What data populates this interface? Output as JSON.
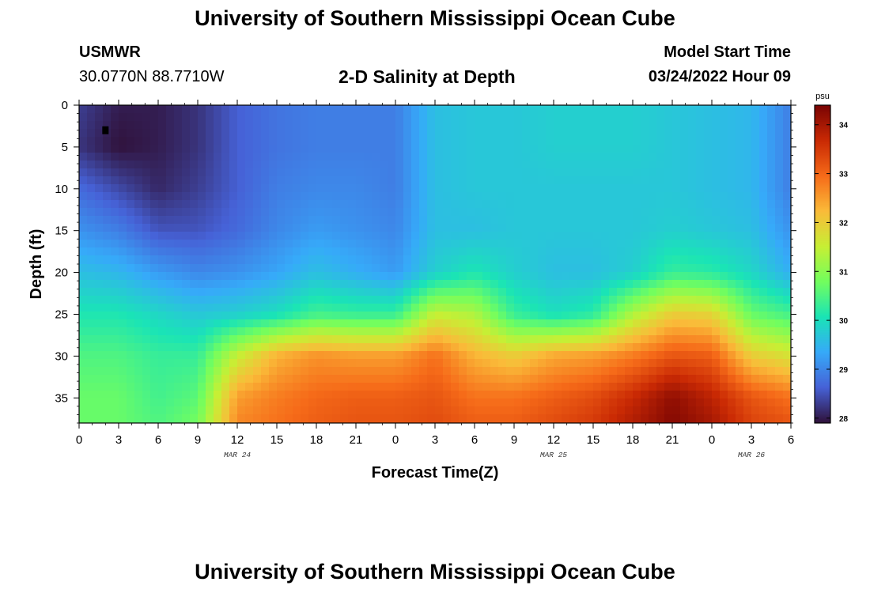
{
  "header": {
    "title": "University of Southern Mississippi Ocean Cube",
    "station": "USMWR",
    "coordinates": "30.0770N  88.7710W",
    "subtitle": "2-D Salinity at Depth",
    "start_label": "Model Start Time",
    "start_value": "03/24/2022 Hour 09"
  },
  "footer": {
    "title": "University of Southern Mississippi Ocean Cube"
  },
  "chart_data": {
    "type": "heatmap",
    "title": "2-D Salinity at Depth",
    "xlabel": "Forecast Time(Z)",
    "ylabel": "Depth (ft)",
    "x_tick_labels": [
      "0",
      "3",
      "6",
      "9",
      "12",
      "15",
      "18",
      "21",
      "0",
      "3",
      "6",
      "9",
      "12",
      "15",
      "18",
      "21",
      "0",
      "3",
      "6"
    ],
    "x_hours_range": [
      0,
      54
    ],
    "date_labels": [
      {
        "label": "MAR 24",
        "hour": 12
      },
      {
        "label": "MAR 25",
        "hour": 36
      },
      {
        "label": "MAR 26",
        "hour": 51
      }
    ],
    "y_ticks": [
      0,
      5,
      10,
      15,
      20,
      25,
      30,
      35
    ],
    "ylim": [
      0,
      38
    ],
    "y_inverted": true,
    "colorbar": {
      "unit": "psu",
      "range": [
        27.9,
        34.4
      ],
      "ticks": [
        28,
        29,
        30,
        31,
        32,
        33,
        34
      ],
      "colormap": [
        "#30123b",
        "#4662d7",
        "#36aaf9",
        "#1ae4b6",
        "#72fe5e",
        "#c7ef34",
        "#fabb39",
        "#f66b19",
        "#ca2a04",
        "#7a0403"
      ]
    },
    "marker": {
      "hour": 2,
      "depth_ft": 3
    },
    "profiles_by_hour": {
      "hours": [
        0,
        3,
        6,
        9,
        12,
        15,
        18,
        21,
        24,
        27,
        30,
        33,
        36,
        39,
        42,
        45,
        48,
        51,
        54
      ],
      "depths_ft": [
        0,
        5,
        10,
        15,
        20,
        25,
        30,
        35,
        38
      ],
      "salinity_psu": [
        [
          28.3,
          28.2,
          28.7,
          29.1,
          29.6,
          30.1,
          30.5,
          30.7,
          30.7
        ],
        [
          28.0,
          27.9,
          28.4,
          28.9,
          29.5,
          30.1,
          30.5,
          30.7,
          30.7
        ],
        [
          28.0,
          28.0,
          28.1,
          28.5,
          29.2,
          29.9,
          30.3,
          30.4,
          30.5
        ],
        [
          28.2,
          28.2,
          28.3,
          28.5,
          29.0,
          29.7,
          30.3,
          30.6,
          30.8
        ],
        [
          28.6,
          28.6,
          28.6,
          28.7,
          29.1,
          29.8,
          31.5,
          32.5,
          32.7
        ],
        [
          28.8,
          28.8,
          28.9,
          29.0,
          29.3,
          30.0,
          32.3,
          32.8,
          32.9
        ],
        [
          28.9,
          28.9,
          29.0,
          29.2,
          29.6,
          30.4,
          32.6,
          33.0,
          33.1
        ],
        [
          28.9,
          28.9,
          29.0,
          29.1,
          29.4,
          30.3,
          32.5,
          33.1,
          33.2
        ],
        [
          28.9,
          28.9,
          28.9,
          29.0,
          29.2,
          30.3,
          32.5,
          33.1,
          33.2
        ],
        [
          29.6,
          29.6,
          29.6,
          29.6,
          29.8,
          31.5,
          32.9,
          33.2,
          33.3
        ],
        [
          29.7,
          29.7,
          29.7,
          29.6,
          30.1,
          31.3,
          32.3,
          32.9,
          33.1
        ],
        [
          29.7,
          29.7,
          29.7,
          29.7,
          29.8,
          30.3,
          32.0,
          32.9,
          33.1
        ],
        [
          29.8,
          29.8,
          29.7,
          29.7,
          29.6,
          30.0,
          32.4,
          33.1,
          33.3
        ],
        [
          29.8,
          29.8,
          29.7,
          29.7,
          29.6,
          30.2,
          32.5,
          33.3,
          33.5
        ],
        [
          29.8,
          29.8,
          29.7,
          29.7,
          29.8,
          31.3,
          32.8,
          33.7,
          33.9
        ],
        [
          29.7,
          29.7,
          29.7,
          29.8,
          30.3,
          32.0,
          33.2,
          34.2,
          34.3
        ],
        [
          29.6,
          29.6,
          29.6,
          29.7,
          30.2,
          31.9,
          33.1,
          33.8,
          34.0
        ],
        [
          29.5,
          29.5,
          29.5,
          29.6,
          29.9,
          30.7,
          32.0,
          33.2,
          33.4
        ],
        [
          28.9,
          28.9,
          28.9,
          29.1,
          29.4,
          30.4,
          31.7,
          32.9,
          33.2
        ]
      ]
    }
  }
}
